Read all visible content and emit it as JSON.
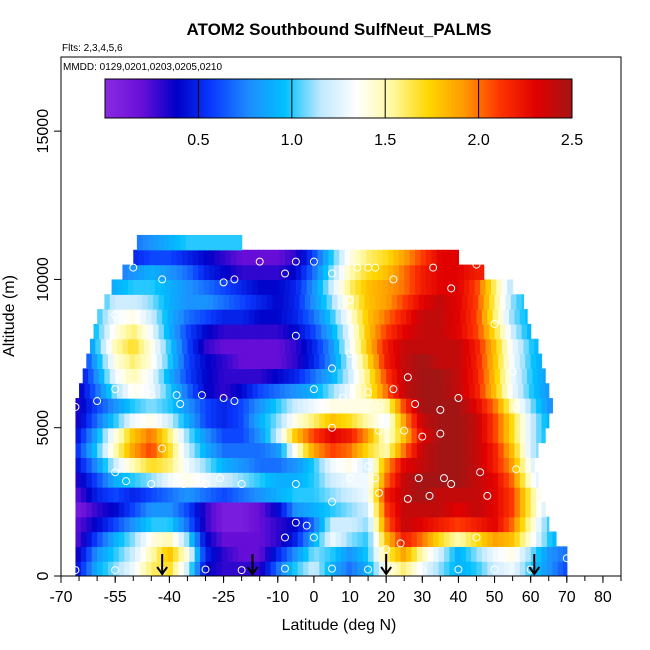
{
  "chart_data": {
    "type": "heatmap",
    "title": "ATOM2 Southbound SulfNeut_PALMS",
    "flights_label": "Flts: 2,3,4,5,6",
    "dates_label": "MMDD: 0129,0201,0203,0205,0210",
    "xlabel": "Latitude (deg N)",
    "ylabel": "Altitude (m)",
    "xlim": [
      -70,
      85
    ],
    "ylim": [
      0,
      17500
    ],
    "x_ticks": [
      "-70",
      "-55",
      "-40",
      "-25",
      "-10",
      "0",
      "10",
      "20",
      "30",
      "40",
      "50",
      "60",
      "70",
      "80"
    ],
    "x_tick_values": [
      -70,
      -55,
      -40,
      -25,
      -10,
      0,
      10,
      20,
      30,
      40,
      50,
      60,
      70,
      80
    ],
    "y_ticks": [
      "0",
      "5000",
      "10000",
      "15000"
    ],
    "y_tick_values": [
      0,
      5000,
      10000,
      15000
    ],
    "colorbar": {
      "min": 0,
      "max": 2.5,
      "ticks": [
        "0.5",
        "1.0",
        "1.5",
        "2.0",
        "2.5"
      ],
      "tick_values": [
        0.5,
        1.0,
        1.5,
        2.0,
        2.5
      ],
      "colors": [
        "#8a2be2",
        "#6a0fd8",
        "#0000c8",
        "#0a3cff",
        "#1e8cff",
        "#00c0ff",
        "#bfe8ff",
        "#ffffff",
        "#fff9a0",
        "#ffd700",
        "#ff9900",
        "#ff3300",
        "#e00000",
        "#a31515"
      ]
    },
    "arrows_lat": [
      -42,
      -17,
      20,
      61
    ],
    "altitude_levels_m": [
      500,
      1000,
      1500,
      2000,
      2500,
      3000,
      3500,
      4000,
      4500,
      5000,
      5500,
      6000,
      6500,
      7000,
      7500,
      8000,
      8500,
      9000,
      9500,
      10000,
      10500,
      11000,
      11500
    ],
    "level_lat_range": [
      [
        -66,
        70
      ],
      [
        -66,
        70
      ],
      [
        -66,
        67
      ],
      [
        -66,
        65
      ],
      [
        -66,
        64
      ],
      [
        -66,
        63
      ],
      [
        -66,
        62
      ],
      [
        -66,
        61
      ],
      [
        -66,
        62
      ],
      [
        -66,
        64
      ],
      [
        -66,
        65
      ],
      [
        -66,
        66
      ],
      [
        -65,
        65
      ],
      [
        -64,
        64
      ],
      [
        -63,
        63
      ],
      [
        -62,
        62
      ],
      [
        -61,
        60
      ],
      [
        -60,
        59
      ],
      [
        -58,
        58
      ],
      [
        -56,
        55
      ],
      [
        -53,
        47
      ],
      [
        -50,
        40
      ],
      [
        -49,
        -20
      ]
    ],
    "latitude_knots": [
      -66,
      -60,
      -55,
      -50,
      -45,
      -40,
      -35,
      -30,
      -25,
      -20,
      -15,
      -10,
      -5,
      0,
      5,
      10,
      15,
      20,
      25,
      30,
      35,
      40,
      45,
      50,
      55,
      60,
      65,
      70
    ],
    "values": [
      [
        0.4,
        0.9,
        1.1,
        1.3,
        1.6,
        1.7,
        1.2,
        0.4,
        0.3,
        0.3,
        0.3,
        0.7,
        1.0,
        1.2,
        0.9,
        0.7,
        0.9,
        1.4,
        1.6,
        1.3,
        1.1,
        0.9,
        1.0,
        1.2,
        1.3,
        1.0,
        0.8,
        0.6
      ],
      [
        0.3,
        0.8,
        1.0,
        1.2,
        1.5,
        1.8,
        1.4,
        0.5,
        0.3,
        0.2,
        0.2,
        0.5,
        0.8,
        1.1,
        1.0,
        0.8,
        1.0,
        1.6,
        1.9,
        1.5,
        1.2,
        0.9,
        1.1,
        1.3,
        1.4,
        1.1,
        0.8,
        0.7
      ],
      [
        0.2,
        0.6,
        0.9,
        1.1,
        1.4,
        1.5,
        1.1,
        0.4,
        0.2,
        0.2,
        0.2,
        0.3,
        0.5,
        0.9,
        1.3,
        1.1,
        1.0,
        1.8,
        2.2,
        2.0,
        1.7,
        1.5,
        1.7,
        1.9,
        1.8,
        1.4,
        1.0,
        0.8
      ],
      [
        0.2,
        0.4,
        0.6,
        0.8,
        1.0,
        1.0,
        0.7,
        0.3,
        0.1,
        0.1,
        0.2,
        0.3,
        0.4,
        0.7,
        1.2,
        1.2,
        1.1,
        2.0,
        2.4,
        2.3,
        2.2,
        2.1,
        2.2,
        2.3,
        2.0,
        1.5,
        1.0,
        0.8
      ],
      [
        0.1,
        0.3,
        0.4,
        0.6,
        0.8,
        0.8,
        0.6,
        0.3,
        0.1,
        0.1,
        0.2,
        0.4,
        0.8,
        0.9,
        1.0,
        1.1,
        1.2,
        2.1,
        2.4,
        2.4,
        2.4,
        2.3,
        2.4,
        2.3,
        2.1,
        1.6,
        1.1,
        0.8
      ],
      [
        0.2,
        0.5,
        0.6,
        0.5,
        0.6,
        0.7,
        0.8,
        0.7,
        0.6,
        0.7,
        0.8,
        0.9,
        1.0,
        1.0,
        1.1,
        1.2,
        1.3,
        2.2,
        2.4,
        2.5,
        2.4,
        2.4,
        2.4,
        2.3,
        2.1,
        1.6,
        1.1,
        0.8
      ],
      [
        0.3,
        0.6,
        0.9,
        1.0,
        1.1,
        1.3,
        1.4,
        1.3,
        1.2,
        1.1,
        1.0,
        0.9,
        0.9,
        1.0,
        1.2,
        1.3,
        1.3,
        2.0,
        2.4,
        2.5,
        2.5,
        2.5,
        2.4,
        2.3,
        2.0,
        1.4,
        1.0,
        0.8
      ],
      [
        0.4,
        0.8,
        1.2,
        1.5,
        1.7,
        1.6,
        1.3,
        1.1,
        0.9,
        0.8,
        0.7,
        0.7,
        0.8,
        1.0,
        1.3,
        1.4,
        1.2,
        1.9,
        2.3,
        2.4,
        2.5,
        2.5,
        2.4,
        2.2,
        1.9,
        1.3,
        0.9,
        0.7
      ],
      [
        0.5,
        1.0,
        1.5,
        1.9,
        2.1,
        1.7,
        1.2,
        0.9,
        0.7,
        0.7,
        0.7,
        0.8,
        1.4,
        1.9,
        2.1,
        2.0,
        1.7,
        1.5,
        2.0,
        2.4,
        2.5,
        2.5,
        2.4,
        2.2,
        1.8,
        1.2,
        0.9,
        0.7
      ],
      [
        0.4,
        0.9,
        1.4,
        1.8,
        2.0,
        1.6,
        1.1,
        0.8,
        0.6,
        0.6,
        0.8,
        1.2,
        1.8,
        2.1,
        2.3,
        2.2,
        1.9,
        1.4,
        1.8,
        2.3,
        2.5,
        2.5,
        2.4,
        2.1,
        1.7,
        1.2,
        0.9,
        0.7
      ],
      [
        0.3,
        0.7,
        1.0,
        1.3,
        1.4,
        1.2,
        0.9,
        0.6,
        0.5,
        0.6,
        0.9,
        1.1,
        1.4,
        1.6,
        1.8,
        1.7,
        1.5,
        1.3,
        1.9,
        2.4,
        2.5,
        2.5,
        2.4,
        2.1,
        1.7,
        1.2,
        0.9,
        0.7
      ],
      [
        0.3,
        0.6,
        0.8,
        1.0,
        1.1,
        1.0,
        0.8,
        0.6,
        0.5,
        0.6,
        0.8,
        1.0,
        1.2,
        1.3,
        1.4,
        1.4,
        1.4,
        1.5,
        2.1,
        2.5,
        2.5,
        2.5,
        2.3,
        2.0,
        1.5,
        1.1,
        0.8,
        0.7
      ],
      [
        0.3,
        0.7,
        1.1,
        1.4,
        1.3,
        1.0,
        0.7,
        0.4,
        0.3,
        0.4,
        0.6,
        0.7,
        0.8,
        0.9,
        1.1,
        1.3,
        1.6,
        2.0,
        2.4,
        2.5,
        2.5,
        2.4,
        2.2,
        1.8,
        1.3,
        1.0,
        0.8,
        0.7
      ],
      [
        0.3,
        0.8,
        1.3,
        1.5,
        1.3,
        0.9,
        0.6,
        0.4,
        0.3,
        0.3,
        0.3,
        0.4,
        0.5,
        0.7,
        0.9,
        1.2,
        1.6,
        2.1,
        2.4,
        2.5,
        2.5,
        2.4,
        2.2,
        1.8,
        1.3,
        1.0,
        0.8,
        0.7
      ],
      [
        0.3,
        0.9,
        1.4,
        1.6,
        1.4,
        1.0,
        0.6,
        0.4,
        0.3,
        0.2,
        0.2,
        0.2,
        0.3,
        0.5,
        0.8,
        1.2,
        1.7,
        2.2,
        2.4,
        2.5,
        2.4,
        2.4,
        2.2,
        1.8,
        1.3,
        1.0,
        0.8,
        0.7
      ],
      [
        0.4,
        1.0,
        1.5,
        1.7,
        1.4,
        1.0,
        0.6,
        0.3,
        0.2,
        0.2,
        0.2,
        0.2,
        0.3,
        0.5,
        0.8,
        1.3,
        1.8,
        2.2,
        2.4,
        2.4,
        2.4,
        2.4,
        2.2,
        1.8,
        1.3,
        1.0,
        0.8,
        0.7
      ],
      [
        0.5,
        1.0,
        1.4,
        1.6,
        1.3,
        0.9,
        0.6,
        0.4,
        0.3,
        0.3,
        0.3,
        0.3,
        0.4,
        0.6,
        0.9,
        1.3,
        1.8,
        2.1,
        2.3,
        2.4,
        2.4,
        2.3,
        2.1,
        1.7,
        1.2,
        0.9,
        0.8,
        0.7
      ],
      [
        0.5,
        1.0,
        1.3,
        1.4,
        1.2,
        0.9,
        0.7,
        0.6,
        0.5,
        0.5,
        0.4,
        0.4,
        0.5,
        0.7,
        1.0,
        1.4,
        1.8,
        2.0,
        2.2,
        2.4,
        2.4,
        2.3,
        2.1,
        1.6,
        1.1,
        0.9,
        0.7,
        0.6
      ],
      [
        0.5,
        0.9,
        1.2,
        1.2,
        1.1,
        0.9,
        0.8,
        0.8,
        0.7,
        0.6,
        0.5,
        0.4,
        0.5,
        0.8,
        1.1,
        1.5,
        1.8,
        1.9,
        2.1,
        2.3,
        2.4,
        2.3,
        2.1,
        1.6,
        1.1,
        0.9,
        0.7,
        0.6
      ],
      [
        0.4,
        0.7,
        0.9,
        1.0,
        1.0,
        0.9,
        0.8,
        0.7,
        0.6,
        0.5,
        0.4,
        0.4,
        0.5,
        0.8,
        1.2,
        1.6,
        1.8,
        1.9,
        2.0,
        2.2,
        2.3,
        2.3,
        2.1,
        1.6,
        1.1,
        0.9,
        0.7,
        0.6
      ],
      [
        0.3,
        0.5,
        0.7,
        0.8,
        0.9,
        0.8,
        0.7,
        0.5,
        0.4,
        0.3,
        0.3,
        0.3,
        0.4,
        0.7,
        1.1,
        1.5,
        1.7,
        1.8,
        2.0,
        2.2,
        2.3,
        2.3,
        2.2,
        2.2,
        2.2,
        2.2,
        2.2,
        2.2
      ],
      [
        0.2,
        0.3,
        0.4,
        0.5,
        0.6,
        0.6,
        0.5,
        0.4,
        0.3,
        0.2,
        0.2,
        0.2,
        0.3,
        0.6,
        1.0,
        1.4,
        1.6,
        1.7,
        1.9,
        2.1,
        2.3,
        2.3,
        2.3,
        2.3,
        2.3,
        2.3,
        2.3,
        2.3
      ],
      [
        0.3,
        0.5,
        0.6,
        0.7,
        0.8,
        0.9,
        1.0,
        1.0,
        1.0,
        1.0,
        1.0,
        1.0,
        1.0,
        1.0,
        1.0,
        1.0,
        1.0,
        1.0,
        1.0,
        1.0,
        1.0,
        1.0,
        1.0,
        1.0,
        1.0,
        1.0,
        1.0,
        1.0
      ]
    ],
    "sample_points": [
      [
        -66,
        200
      ],
      [
        -55,
        200
      ],
      [
        -42,
        180
      ],
      [
        -30,
        220
      ],
      [
        -20,
        200
      ],
      [
        -8,
        250
      ],
      [
        5,
        250
      ],
      [
        15,
        220
      ],
      [
        22,
        250
      ],
      [
        30,
        200
      ],
      [
        40,
        220
      ],
      [
        50,
        220
      ],
      [
        60,
        220
      ],
      [
        70,
        600
      ],
      [
        -42,
        4300
      ],
      [
        -55,
        3500
      ],
      [
        -52,
        3200
      ],
      [
        -45,
        3100
      ],
      [
        -36,
        3100
      ],
      [
        -30,
        3100
      ],
      [
        -26,
        3300
      ],
      [
        -20,
        3100
      ],
      [
        -5,
        3100
      ],
      [
        5,
        2500
      ],
      [
        10,
        3300
      ],
      [
        15,
        3700
      ],
      [
        17,
        3300
      ],
      [
        18,
        2800
      ],
      [
        26,
        2600
      ],
      [
        29,
        3300
      ],
      [
        32,
        2700
      ],
      [
        36,
        3300
      ],
      [
        38,
        3100
      ],
      [
        46,
        3500
      ],
      [
        48,
        2700
      ],
      [
        56,
        3600
      ],
      [
        -5,
        1800
      ],
      [
        -2,
        1700
      ],
      [
        -8,
        1300
      ],
      [
        0,
        1300
      ],
      [
        20,
        900
      ],
      [
        24,
        1100
      ],
      [
        45,
        1300
      ],
      [
        -60,
        5900
      ],
      [
        -55,
        6300
      ],
      [
        -45,
        6100
      ],
      [
        -38,
        6100
      ],
      [
        -31,
        6100
      ],
      [
        -22,
        5900
      ],
      [
        0,
        6300
      ],
      [
        8,
        6000
      ],
      [
        15,
        6200
      ],
      [
        18,
        5700
      ],
      [
        22,
        6300
      ],
      [
        28,
        5800
      ],
      [
        35,
        5600
      ],
      [
        40,
        6000
      ],
      [
        56,
        5700
      ],
      [
        -66,
        5700
      ],
      [
        -50,
        6400
      ],
      [
        -37,
        5800
      ],
      [
        -25,
        6000
      ],
      [
        5,
        5000
      ],
      [
        18,
        4900
      ],
      [
        25,
        4900
      ],
      [
        30,
        4700
      ],
      [
        35,
        4800
      ],
      [
        -55,
        8800
      ],
      [
        -5,
        8100
      ],
      [
        5,
        7000
      ],
      [
        10,
        7500
      ],
      [
        26,
        6700
      ],
      [
        55,
        6900
      ],
      [
        50,
        8500
      ],
      [
        -59,
        9800
      ],
      [
        -42,
        10000
      ],
      [
        -25,
        9900
      ],
      [
        -22,
        10000
      ],
      [
        -8,
        10200
      ],
      [
        0,
        10600
      ],
      [
        5,
        10200
      ],
      [
        10,
        9300
      ],
      [
        12,
        10400
      ],
      [
        17,
        10400
      ],
      [
        22,
        10000
      ],
      [
        33,
        10400
      ],
      [
        38,
        9700
      ],
      [
        45,
        10500
      ],
      [
        -50,
        10400
      ],
      [
        -15,
        10600
      ],
      [
        -5,
        10600
      ],
      [
        15,
        10400
      ]
    ]
  }
}
